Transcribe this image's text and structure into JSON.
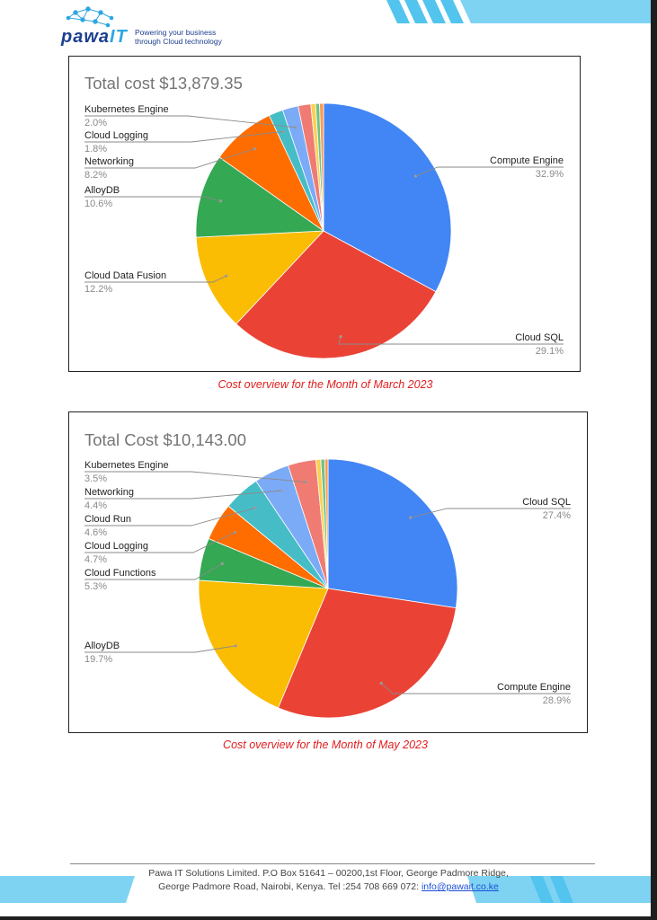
{
  "header": {
    "logo_word": "pawa",
    "logo_it": "IT",
    "tagline_1": "Powering your business",
    "tagline_2": "through Cloud technology"
  },
  "charts": [
    {
      "title": "Total cost $13,879.35",
      "caption": "Cost overview for the Month of March 2023"
    },
    {
      "title": "Total Cost $10,143.00",
      "caption": "Cost overview for the Month of May 2023"
    }
  ],
  "chart_data": [
    {
      "type": "pie",
      "title": "Total cost $13,879.35",
      "unit": "%",
      "slices": [
        {
          "label": "Compute Engine",
          "value": 32.9,
          "color": "#4285f4"
        },
        {
          "label": "Cloud SQL",
          "value": 29.1,
          "color": "#ea4335"
        },
        {
          "label": "Cloud Data Fusion",
          "value": 12.2,
          "color": "#fbbc04"
        },
        {
          "label": "AlloyDB",
          "value": 10.6,
          "color": "#34a853"
        },
        {
          "label": "Networking",
          "value": 8.2,
          "color": "#ff6d01"
        },
        {
          "label": "Cloud Logging",
          "value": 1.8,
          "color": "#46bdc6"
        },
        {
          "label": "Kubernetes Engine",
          "value": 2.0,
          "color": "#7baaf7"
        },
        {
          "label": "",
          "value": 1.6,
          "color": "#f07b72"
        },
        {
          "label": "",
          "value": 0.6,
          "color": "#fcd04f"
        },
        {
          "label": "",
          "value": 0.5,
          "color": "#71c287"
        },
        {
          "label": "",
          "value": 0.5,
          "color": "#ff994d"
        }
      ]
    },
    {
      "type": "pie",
      "title": "Total Cost $10,143.00",
      "unit": "%",
      "slices": [
        {
          "label": "Cloud SQL",
          "value": 27.4,
          "color": "#4285f4"
        },
        {
          "label": "Compute Engine",
          "value": 28.9,
          "color": "#ea4335"
        },
        {
          "label": "AlloyDB",
          "value": 19.7,
          "color": "#fbbc04"
        },
        {
          "label": "Cloud Functions",
          "value": 5.3,
          "color": "#34a853"
        },
        {
          "label": "Cloud Logging",
          "value": 4.7,
          "color": "#ff6d01"
        },
        {
          "label": "Cloud Run",
          "value": 4.6,
          "color": "#46bdc6"
        },
        {
          "label": "Networking",
          "value": 4.4,
          "color": "#7baaf7"
        },
        {
          "label": "Kubernetes Engine",
          "value": 3.5,
          "color": "#f07b72"
        },
        {
          "label": "",
          "value": 0.6,
          "color": "#fcd04f"
        },
        {
          "label": "",
          "value": 0.5,
          "color": "#71c287"
        },
        {
          "label": "",
          "value": 0.4,
          "color": "#ff994d"
        }
      ]
    }
  ],
  "footer": {
    "line1": "Pawa IT Solutions Limited. P.O Box 51641 – 00200,1st Floor, George Padmore Ridge,",
    "line2": "George Padmore Road, Nairobi, Kenya. Tel :254 708 669 072: ",
    "email": "info@pawait.co.ke"
  }
}
